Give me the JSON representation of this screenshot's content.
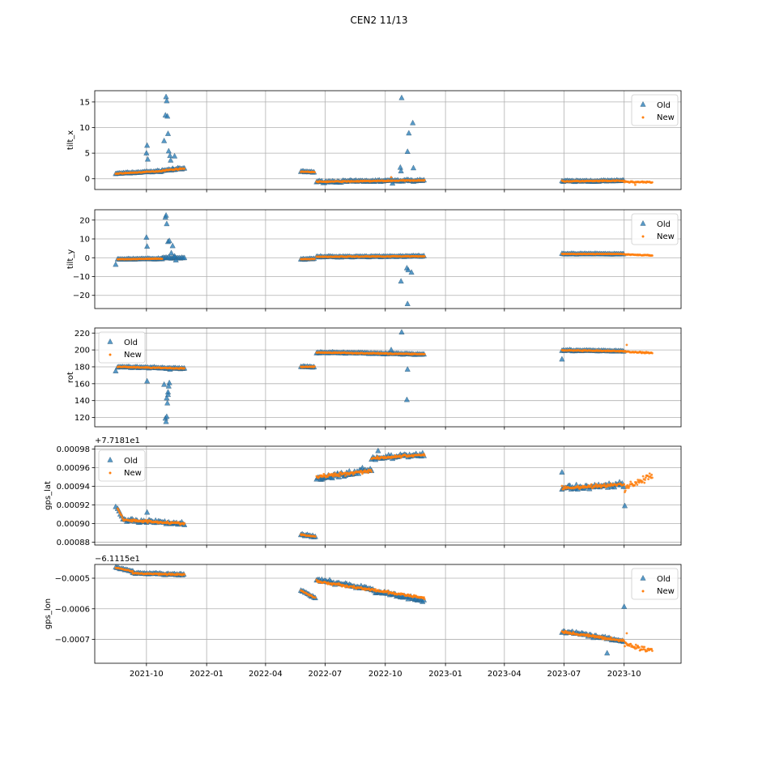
{
  "title": "CEN2 11/13",
  "x_ticks": [
    "2021-10",
    "2022-01",
    "2022-04",
    "2022-07",
    "2022-10",
    "2023-01",
    "2023-04",
    "2023-07",
    "2023-10"
  ],
  "legend_labels": {
    "old": "Old",
    "new": "New"
  },
  "colors": {
    "old": "#1f77b4",
    "new": "#ff7f0e",
    "grid": "#b0b0b0"
  },
  "chart_data": [
    {
      "type": "scatter",
      "ylabel": "tilt_x",
      "offset_text": "",
      "ylim": [
        -2.1,
        17.2
      ],
      "yticks": [
        0,
        5,
        10,
        15
      ],
      "ytick_labels": [
        "0",
        "5",
        "10",
        "15"
      ],
      "legend_position": "upper-right",
      "series": [
        {
          "name": "Old",
          "segments": [
            {
              "x0": "2021-08-15",
              "x1": "2021-10-25",
              "y0": 1.0,
              "y1": 1.5,
              "jitter": 0.15
            },
            {
              "x0": "2021-10-25",
              "x1": "2021-11-28",
              "y0": 1.6,
              "y1": 2.0,
              "jitter": 0.25
            },
            {
              "x0": "2022-05-25",
              "x1": "2022-06-15",
              "y0": 1.4,
              "y1": 1.3,
              "jitter": 0.15
            },
            {
              "x0": "2022-06-18",
              "x1": "2022-11-30",
              "y0": -0.6,
              "y1": -0.3,
              "jitter": 0.25
            },
            {
              "x0": "2023-06-28",
              "x1": "2023-10-01",
              "y0": -0.5,
              "y1": -0.4,
              "jitter": 0.2
            }
          ],
          "extra": [
            [
              "2021-10-01",
              5.0
            ],
            [
              "2021-10-02",
              6.5
            ],
            [
              "2021-10-03",
              3.8
            ],
            [
              "2021-10-28",
              7.4
            ],
            [
              "2021-10-30",
              12.4
            ],
            [
              "2021-10-31",
              16.0
            ],
            [
              "2021-11-01",
              15.2
            ],
            [
              "2021-11-02",
              12.2
            ],
            [
              "2021-11-03",
              8.8
            ],
            [
              "2021-11-04",
              5.4
            ],
            [
              "2021-11-06",
              4.5
            ],
            [
              "2021-11-07",
              3.6
            ],
            [
              "2021-11-10",
              2.0
            ],
            [
              "2021-11-13",
              4.4
            ],
            [
              "2022-10-26",
              15.8
            ],
            [
              "2022-10-24",
              2.2
            ],
            [
              "2022-10-25",
              1.5
            ],
            [
              "2022-11-04",
              5.3
            ],
            [
              "2022-11-06",
              8.9
            ],
            [
              "2022-11-12",
              10.9
            ],
            [
              "2022-11-13",
              2.1
            ],
            [
              "2022-10-12",
              -0.9
            ]
          ]
        },
        {
          "name": "New",
          "segments": [
            {
              "x0": "2021-08-15",
              "x1": "2021-10-25",
              "y0": 1.0,
              "y1": 1.5,
              "jitter": 0.1
            },
            {
              "x0": "2021-10-25",
              "x1": "2021-11-28",
              "y0": 1.6,
              "y1": 2.0,
              "jitter": 0.15
            },
            {
              "x0": "2022-05-25",
              "x1": "2022-06-15",
              "y0": 1.4,
              "y1": 1.3,
              "jitter": 0.1
            },
            {
              "x0": "2022-06-18",
              "x1": "2022-11-30",
              "y0": -0.6,
              "y1": -0.3,
              "jitter": 0.15
            },
            {
              "x0": "2023-06-28",
              "x1": "2023-10-01",
              "y0": -0.5,
              "y1": -0.4,
              "jitter": 0.15
            },
            {
              "x0": "2023-10-01",
              "x1": "2023-11-13",
              "y0": -0.6,
              "y1": -0.7,
              "jitter": 0.2
            }
          ],
          "extra": [
            [
              "2022-10-10",
              0.3
            ],
            [
              "2023-10-18",
              -1.2
            ]
          ]
        }
      ]
    },
    {
      "type": "scatter",
      "ylabel": "tilt_y",
      "offset_text": "",
      "ylim": [
        -27,
        25.5
      ],
      "yticks": [
        -20,
        -10,
        0,
        10,
        20
      ],
      "ytick_labels": [
        "−20",
        "−10",
        "0",
        "10",
        "20"
      ],
      "legend_position": "upper-right",
      "series": [
        {
          "name": "Old",
          "segments": [
            {
              "x0": "2021-08-18",
              "x1": "2021-10-25",
              "y0": -0.8,
              "y1": -0.5,
              "jitter": 0.3
            },
            {
              "x0": "2021-10-25",
              "x1": "2021-11-28",
              "y0": 0.0,
              "y1": 0.0,
              "jitter": 0.5
            },
            {
              "x0": "2022-05-25",
              "x1": "2022-06-15",
              "y0": -0.8,
              "y1": -0.6,
              "jitter": 0.3
            },
            {
              "x0": "2022-06-18",
              "x1": "2022-11-30",
              "y0": 0.5,
              "y1": 0.8,
              "jitter": 0.4
            },
            {
              "x0": "2023-06-28",
              "x1": "2023-10-01",
              "y0": 2.0,
              "y1": 2.0,
              "jitter": 0.3
            }
          ],
          "extra": [
            [
              "2021-08-15",
              -3.6
            ],
            [
              "2021-10-01",
              10.8
            ],
            [
              "2021-10-02",
              6.0
            ],
            [
              "2021-10-30",
              21.5
            ],
            [
              "2021-10-31",
              22.5
            ],
            [
              "2021-11-01",
              18.0
            ],
            [
              "2021-11-03",
              8.5
            ],
            [
              "2021-11-05",
              9.0
            ],
            [
              "2021-11-08",
              2.5
            ],
            [
              "2021-11-10",
              6.3
            ],
            [
              "2021-11-13",
              0.8
            ],
            [
              "2021-11-15",
              -1.3
            ],
            [
              "2022-10-25",
              -12.5
            ],
            [
              "2022-11-03",
              -5.5
            ],
            [
              "2022-11-05",
              -6.5
            ],
            [
              "2022-11-10",
              -7.8
            ],
            [
              "2022-11-04",
              -24.5
            ]
          ]
        },
        {
          "name": "New",
          "segments": [
            {
              "x0": "2021-08-18",
              "x1": "2021-10-25",
              "y0": -0.8,
              "y1": -0.5,
              "jitter": 0.2
            },
            {
              "x0": "2022-05-25",
              "x1": "2022-06-15",
              "y0": -0.8,
              "y1": -0.6,
              "jitter": 0.2
            },
            {
              "x0": "2022-06-18",
              "x1": "2022-11-30",
              "y0": 0.5,
              "y1": 0.8,
              "jitter": 0.3
            },
            {
              "x0": "2023-06-28",
              "x1": "2023-10-01",
              "y0": 2.0,
              "y1": 2.0,
              "jitter": 0.2
            },
            {
              "x0": "2023-10-01",
              "x1": "2023-11-13",
              "y0": 1.8,
              "y1": 1.2,
              "jitter": 0.3
            }
          ],
          "extra": []
        }
      ]
    },
    {
      "type": "scatter",
      "ylabel": "rot",
      "offset_text": "",
      "ylim": [
        109,
        226
      ],
      "yticks": [
        120,
        140,
        160,
        180,
        200,
        220
      ],
      "ytick_labels": [
        "120",
        "140",
        "160",
        "180",
        "200",
        "220"
      ],
      "legend_position": "upper-left",
      "series": [
        {
          "name": "Old",
          "segments": [
            {
              "x0": "2021-08-18",
              "x1": "2021-11-28",
              "y0": 180,
              "y1": 178,
              "jitter": 1.2
            },
            {
              "x0": "2022-05-25",
              "x1": "2022-06-15",
              "y0": 180,
              "y1": 180,
              "jitter": 1.0
            },
            {
              "x0": "2022-06-18",
              "x1": "2022-11-30",
              "y0": 197,
              "y1": 195,
              "jitter": 1.0
            },
            {
              "x0": "2023-06-28",
              "x1": "2023-10-01",
              "y0": 199.5,
              "y1": 198.5,
              "jitter": 1.0
            }
          ],
          "extra": [
            [
              "2021-08-15",
              175
            ],
            [
              "2021-10-02",
              163
            ],
            [
              "2021-10-28",
              159
            ],
            [
              "2021-10-30",
              119
            ],
            [
              "2021-10-31",
              115
            ],
            [
              "2021-11-01",
              121
            ],
            [
              "2021-11-01",
              143
            ],
            [
              "2021-11-02",
              137
            ],
            [
              "2021-11-03",
              147
            ],
            [
              "2021-11-05",
              161
            ],
            [
              "2021-11-04",
              157
            ],
            [
              "2021-11-03",
              150
            ],
            [
              "2021-11-06",
              177
            ],
            [
              "2022-10-26",
              221
            ],
            [
              "2022-11-04",
              177
            ],
            [
              "2022-11-03",
              141
            ],
            [
              "2023-06-28",
              189
            ],
            [
              "2022-10-10",
              200
            ]
          ]
        },
        {
          "name": "New",
          "segments": [
            {
              "x0": "2021-08-18",
              "x1": "2021-11-28",
              "y0": 180,
              "y1": 178,
              "jitter": 0.8
            },
            {
              "x0": "2022-05-25",
              "x1": "2022-06-15",
              "y0": 180,
              "y1": 180,
              "jitter": 0.8
            },
            {
              "x0": "2022-06-18",
              "x1": "2022-11-30",
              "y0": 197,
              "y1": 195,
              "jitter": 0.8
            },
            {
              "x0": "2023-06-28",
              "x1": "2023-10-01",
              "y0": 199.5,
              "y1": 198.5,
              "jitter": 0.8
            },
            {
              "x0": "2023-10-01",
              "x1": "2023-11-13",
              "y0": 198,
              "y1": 196.5,
              "jitter": 1.2
            }
          ],
          "extra": [
            [
              "2023-10-05",
              206
            ]
          ]
        }
      ]
    },
    {
      "type": "scatter",
      "ylabel": "gps_lat",
      "offset_text": "+7.7181e1",
      "ylim": [
        0.000877,
        0.000983
      ],
      "yticks": [
        0.00088,
        0.0009,
        0.00092,
        0.00094,
        0.00096,
        0.00098
      ],
      "ytick_labels": [
        "0.00088",
        "0.00090",
        "0.00092",
        "0.00094",
        "0.00096",
        "0.00098"
      ],
      "legend_position": "upper-left",
      "series": [
        {
          "name": "Old",
          "segments": [
            {
              "x0": "2021-08-18",
              "x1": "2021-08-25",
              "y0": 0.000916,
              "y1": 0.000907,
              "jitter": 1e-06
            },
            {
              "x0": "2021-08-26",
              "x1": "2021-11-28",
              "y0": 0.000904,
              "y1": 0.0009,
              "jitter": 2.5e-06
            },
            {
              "x0": "2022-05-25",
              "x1": "2022-06-16",
              "y0": 0.000888,
              "y1": 0.000886,
              "jitter": 1.5e-06
            },
            {
              "x0": "2022-06-18",
              "x1": "2022-07-20",
              "y0": 0.000947,
              "y1": 0.000952,
              "jitter": 4e-06
            },
            {
              "x0": "2022-07-20",
              "x1": "2022-09-10",
              "y0": 0.000952,
              "y1": 0.000958,
              "jitter": 5e-06
            },
            {
              "x0": "2022-09-10",
              "x1": "2022-11-30",
              "y0": 0.00097,
              "y1": 0.000974,
              "jitter": 3e-06
            },
            {
              "x0": "2023-06-28",
              "x1": "2023-10-01",
              "y0": 0.000938,
              "y1": 0.000942,
              "jitter": 4.5e-06
            }
          ],
          "extra": [
            [
              "2021-08-15",
              0.000918
            ],
            [
              "2021-10-02",
              0.000912
            ],
            [
              "2023-06-28",
              0.000955
            ],
            [
              "2023-10-02",
              0.000919
            ],
            [
              "2022-09-20",
              0.000978
            ]
          ]
        },
        {
          "name": "New",
          "segments": [
            {
              "x0": "2021-08-18",
              "x1": "2021-08-25",
              "y0": 0.000916,
              "y1": 0.000907,
              "jitter": 1e-06
            },
            {
              "x0": "2021-08-26",
              "x1": "2021-11-28",
              "y0": 0.000904,
              "y1": 0.0009,
              "jitter": 1.8e-06
            },
            {
              "x0": "2022-05-25",
              "x1": "2022-06-16",
              "y0": 0.000888,
              "y1": 0.000886,
              "jitter": 1e-06
            },
            {
              "x0": "2022-06-18",
              "x1": "2022-09-10",
              "y0": 0.00095,
              "y1": 0.000957,
              "jitter": 3e-06
            },
            {
              "x0": "2022-09-10",
              "x1": "2022-11-30",
              "y0": 0.00097,
              "y1": 0.000974,
              "jitter": 2e-06
            },
            {
              "x0": "2023-06-28",
              "x1": "2023-10-01",
              "y0": 0.000938,
              "y1": 0.000942,
              "jitter": 3e-06
            },
            {
              "x0": "2023-10-02",
              "x1": "2023-11-13",
              "y0": 0.000938,
              "y1": 0.000952,
              "jitter": 6e-06
            }
          ],
          "extra": []
        }
      ]
    },
    {
      "type": "scatter",
      "ylabel": "gps_lon",
      "offset_text": "−6.1115e1",
      "ylim": [
        -0.000778,
        -0.000455
      ],
      "yticks": [
        -0.0005,
        -0.0006,
        -0.0007
      ],
      "ytick_labels": [
        "−0.0005",
        "−0.0006",
        "−0.0007"
      ],
      "legend_position": "upper-right",
      "series": [
        {
          "name": "Old",
          "segments": [
            {
              "x0": "2021-08-15",
              "x1": "2021-09-10",
              "y0": -0.000465,
              "y1": -0.000478,
              "jitter": 3e-06
            },
            {
              "x0": "2021-09-10",
              "x1": "2021-11-28",
              "y0": -0.000484,
              "y1": -0.000488,
              "jitter": 4e-06
            },
            {
              "x0": "2022-05-25",
              "x1": "2022-06-16",
              "y0": -0.00054,
              "y1": -0.000565,
              "jitter": 4e-06
            },
            {
              "x0": "2022-06-18",
              "x1": "2022-09-10",
              "y0": -0.000505,
              "y1": -0.000535,
              "jitter": 7e-06
            },
            {
              "x0": "2022-09-10",
              "x1": "2022-11-30",
              "y0": -0.00054,
              "y1": -0.000575,
              "jitter": 9e-06
            },
            {
              "x0": "2023-06-28",
              "x1": "2023-10-01",
              "y0": -0.000672,
              "y1": -0.000705,
              "jitter": 8e-06
            }
          ],
          "extra": [
            [
              "2023-10-01",
              -0.000593
            ],
            [
              "2023-09-05",
              -0.000745
            ]
          ]
        },
        {
          "name": "New",
          "segments": [
            {
              "x0": "2021-08-15",
              "x1": "2021-09-10",
              "y0": -0.000465,
              "y1": -0.000478,
              "jitter": 2e-06
            },
            {
              "x0": "2021-09-10",
              "x1": "2021-11-28",
              "y0": -0.000484,
              "y1": -0.000488,
              "jitter": 3e-06
            },
            {
              "x0": "2022-05-25",
              "x1": "2022-06-16",
              "y0": -0.00054,
              "y1": -0.000565,
              "jitter": 3e-06
            },
            {
              "x0": "2022-06-18",
              "x1": "2022-11-30",
              "y0": -0.00051,
              "y1": -0.000565,
              "jitter": 6e-06
            },
            {
              "x0": "2023-06-28",
              "x1": "2023-10-01",
              "y0": -0.000675,
              "y1": -0.000705,
              "jitter": 6e-06
            },
            {
              "x0": "2023-10-02",
              "x1": "2023-11-13",
              "y0": -0.000715,
              "y1": -0.000738,
              "jitter": 1.2e-05
            }
          ],
          "extra": [
            [
              "2023-10-05",
              -0.00068
            ]
          ]
        }
      ]
    }
  ]
}
